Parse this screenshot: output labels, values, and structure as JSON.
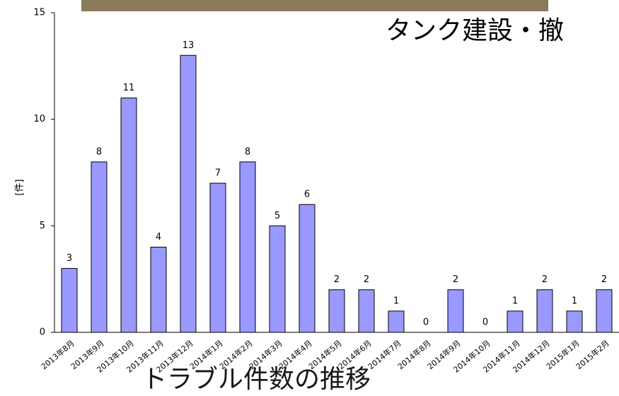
{
  "chart_data": {
    "type": "bar",
    "title": "タンク建設・撤",
    "subtitle": "トラブル件数の推移",
    "y_label": "[件]",
    "categories": [
      "2013年8月",
      "2013年9月",
      "2013年10月",
      "2013年11月",
      "2013年12月",
      "2014年1月",
      "2014年2月",
      "2014年3月",
      "2014年4月",
      "2014年5月",
      "2014年6月",
      "2014年7月",
      "2014年8月",
      "2014年9月",
      "2014年10月",
      "2014年11月",
      "2014年12月",
      "2015年1月",
      "2015年2月"
    ],
    "values": [
      3,
      8,
      11,
      4,
      13,
      7,
      8,
      5,
      6,
      2,
      2,
      1,
      0,
      2,
      0,
      1,
      2,
      1,
      2
    ],
    "color": "#9999ff",
    "ylim": [
      0,
      15
    ],
    "yticks": [
      0,
      5,
      10,
      15
    ],
    "grid": false
  }
}
